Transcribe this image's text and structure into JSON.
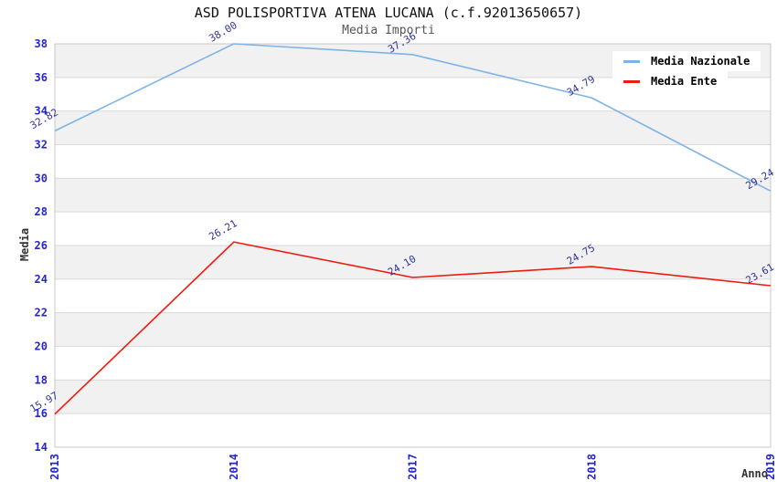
{
  "chart_data": {
    "type": "line",
    "title": "ASD POLISPORTIVA ATENA LUCANA (c.f.92013650657)",
    "subtitle": "Media Importi",
    "xlabel": "Anno",
    "ylabel": "Media",
    "categories": [
      "2013",
      "2014",
      "2017",
      "2018",
      "2019"
    ],
    "series": [
      {
        "name": "Media Nazionale",
        "color": "#7eb3e7",
        "values": [
          32.82,
          38.0,
          37.36,
          34.79,
          29.24
        ]
      },
      {
        "name": "Media Ente",
        "color": "#ef1a10",
        "values": [
          15.97,
          26.21,
          24.1,
          24.75,
          23.61
        ]
      }
    ],
    "ylim": [
      14,
      38
    ],
    "ytick_step": 2,
    "grid": true,
    "legend_position": "top-right",
    "band_fill": "alternating",
    "colors": {
      "tick_label": "#2525cd",
      "data_label": "#333399",
      "band": "#f1f1f1",
      "gridline": "#d9d9d9",
      "plot_border": "#c8c8c8",
      "title": "#111111",
      "subtitle": "#555555",
      "axis_title": "#333333"
    }
  }
}
